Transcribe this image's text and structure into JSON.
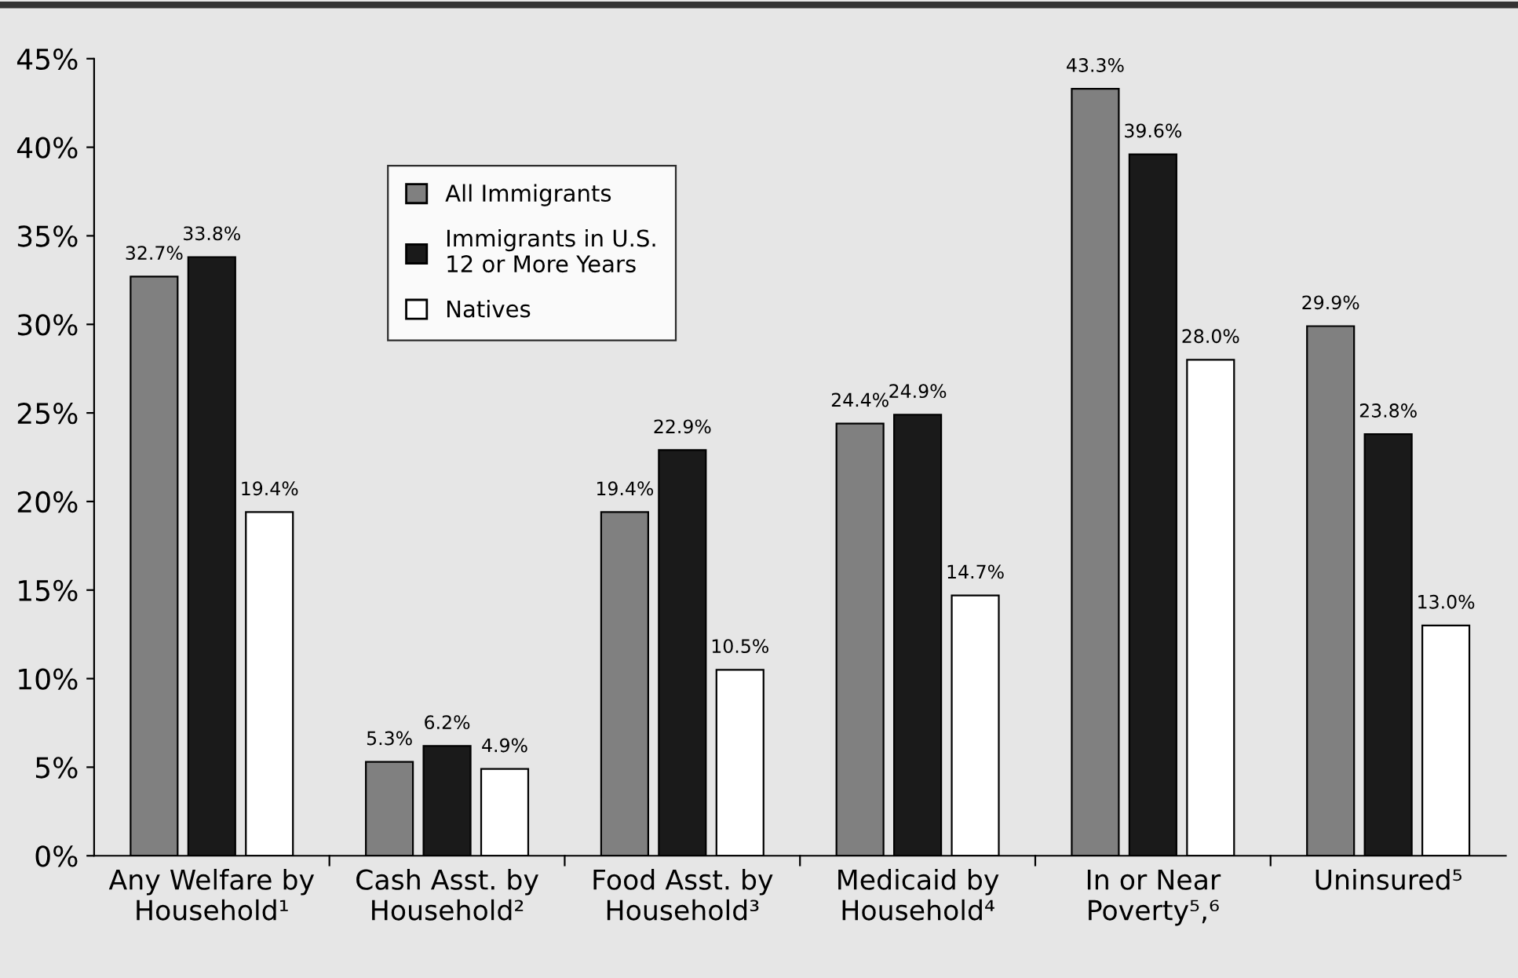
{
  "chart_data": {
    "type": "bar",
    "categories": [
      "Any Welfare by\nHousehold¹",
      "Cash Asst. by\nHousehold²",
      "Food Asst. by\nHousehold³",
      "Medicaid by\nHousehold⁴",
      "In or Near\nPoverty⁵,⁶",
      "Uninsured⁵"
    ],
    "series": [
      {
        "name": "All Immigrants",
        "color": "#808080",
        "values": [
          32.7,
          5.3,
          19.4,
          24.4,
          43.3,
          29.9
        ],
        "value_labels": [
          "32.7%",
          "5.3%",
          "19.4%",
          "24.4%",
          "43.3%",
          "29.9%"
        ]
      },
      {
        "name": "Immigrants in U.S.\n12 or More Years",
        "color": "#1a1a1a",
        "values": [
          33.8,
          6.2,
          22.9,
          24.9,
          39.6,
          23.8
        ],
        "value_labels": [
          "33.8%",
          "6.2%",
          "22.9%",
          "24.9%",
          "39.6%",
          "23.8%"
        ]
      },
      {
        "name": "Natives",
        "color": "#ffffff",
        "values": [
          19.4,
          4.9,
          10.5,
          14.7,
          28.0,
          13.0
        ],
        "value_labels": [
          "19.4%",
          "4.9%",
          "10.5%",
          "14.7%",
          "28.0%",
          "13.0%"
        ]
      }
    ],
    "ylim": [
      0,
      45
    ],
    "yticks": [
      {
        "value": 0,
        "label": "0%"
      },
      {
        "value": 5,
        "label": "5%"
      },
      {
        "value": 10,
        "label": "10%"
      },
      {
        "value": 15,
        "label": "15%"
      },
      {
        "value": 20,
        "label": "20%"
      },
      {
        "value": 25,
        "label": "25%"
      },
      {
        "value": 30,
        "label": "30%"
      },
      {
        "value": 35,
        "label": "35%"
      },
      {
        "value": 40,
        "label": "40%"
      },
      {
        "value": 45,
        "label": "45%"
      }
    ],
    "grid": false,
    "legend": "top left"
  }
}
